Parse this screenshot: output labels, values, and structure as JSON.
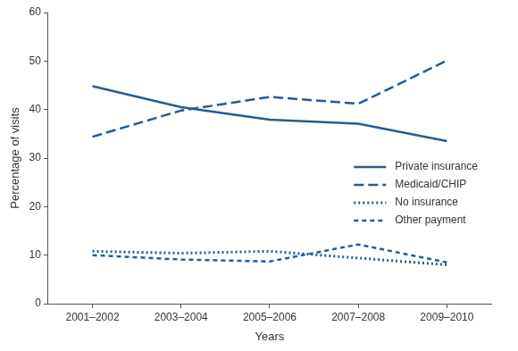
{
  "chart_data": {
    "type": "line",
    "x_label": "Years",
    "y_label": "Percentage of visits",
    "categories": [
      "2001–2002",
      "2003–2004",
      "2005–2006",
      "2007–2008",
      "2009–2010"
    ],
    "series": [
      {
        "name": "Private insurance",
        "color": "#245c95",
        "line_style": "solid",
        "values": [
          44.8,
          40.5,
          37.9,
          37.1,
          33.5
        ]
      },
      {
        "name": "Medicaid/CHIP",
        "color": "#245c95",
        "line_style": "dashed",
        "values": [
          34.4,
          39.8,
          42.6,
          41.2,
          50.1
        ]
      },
      {
        "name": "No insurance",
        "color": "#245c95",
        "line_style": "dotted",
        "values": [
          10.8,
          10.4,
          10.8,
          9.4,
          8.0
        ]
      },
      {
        "name": "Other payment",
        "color": "#245c95",
        "line_style": "short-dash",
        "values": [
          10.0,
          9.1,
          8.7,
          12.2,
          8.5
        ]
      }
    ],
    "ylim": [
      0,
      60
    ],
    "yticks": [
      0,
      10,
      20,
      30,
      40,
      50,
      60
    ],
    "grid": false,
    "legend": "right"
  }
}
